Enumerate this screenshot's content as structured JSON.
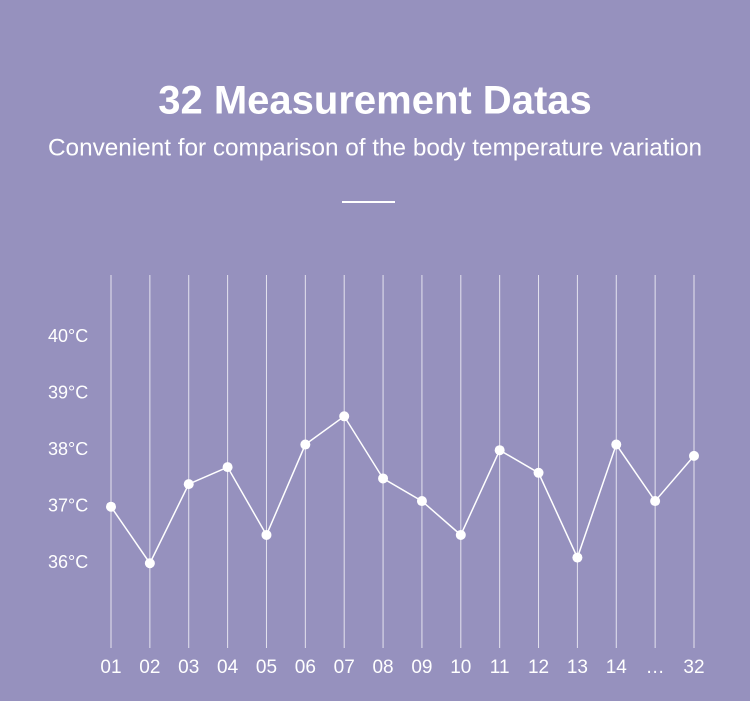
{
  "chart_data": {
    "type": "line",
    "title": "32 Measurement Datas",
    "subtitle": "Convenient for comparison of the body temperature variation",
    "categories": [
      "01",
      "02",
      "03",
      "04",
      "05",
      "06",
      "07",
      "08",
      "09",
      "10",
      "11",
      "12",
      "13",
      "14",
      "…",
      "32"
    ],
    "series": [
      {
        "color": "#ffffff",
        "values": [
          37.0,
          36.0,
          37.4,
          37.7,
          36.5,
          38.1,
          38.6,
          37.5,
          37.1,
          36.5,
          38.0,
          37.6,
          36.1,
          38.1,
          37.1,
          37.9
        ]
      }
    ],
    "ylim": [
      34.5,
      41.1
    ],
    "yticks": [
      {
        "value": 36,
        "label": "36°C"
      },
      {
        "value": 37,
        "label": "37°C"
      },
      {
        "value": 38,
        "label": "38°C"
      },
      {
        "value": 39,
        "label": "39°C"
      },
      {
        "value": 40,
        "label": "40°C"
      }
    ]
  }
}
